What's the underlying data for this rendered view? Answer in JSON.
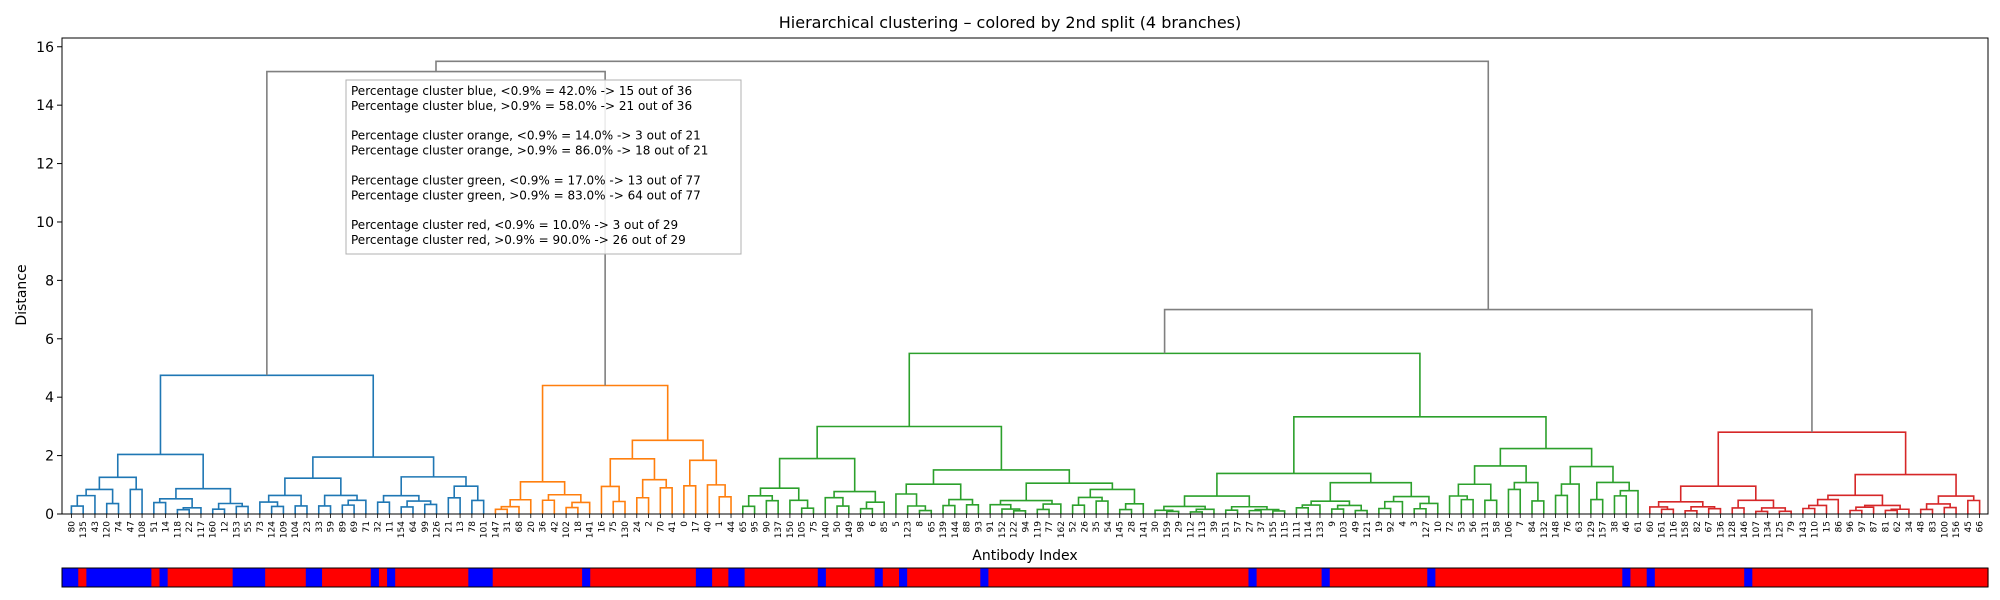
{
  "chart_data": {
    "type": "dendrogram",
    "title": "Hierarchical clustering – colored by 2nd split (4 branches)",
    "xlabel": "Antibody Index",
    "ylabel": "Distance",
    "ylim": [
      0,
      16.3
    ],
    "yticks": [
      0,
      2,
      4,
      6,
      8,
      10,
      12,
      14,
      16
    ],
    "grid": false,
    "colors": {
      "blue_branch": "#1f77b4",
      "orange_branch": "#ff7f0e",
      "green_branch": "#2ca02c",
      "red_branch": "#d62728",
      "upper_links": "#808080",
      "label_low": "#0000ff",
      "label_high": "#ff0000"
    },
    "annotation_lines": [
      "Percentage cluster blue, <0.9% = 42.0%  -> 15  out of 36",
      "Percentage cluster blue, >0.9% = 58.0%  -> 21  out of 36",
      "",
      "Percentage cluster orange, <0.9% = 14.0%  -> 3  out of 21",
      "Percentage cluster orange, >0.9% = 86.0%  -> 18  out of 21",
      "",
      "Percentage cluster green, <0.9% = 17.0%  -> 13  out of 77",
      "Percentage cluster green, >0.9% = 83.0%  -> 64  out of 77",
      "",
      "Percentage cluster red, <0.9% = 10.0%  -> 3  out of 29",
      "Percentage cluster red, >0.9% = 90.0%  -> 26  out of 29"
    ],
    "clusters": [
      {
        "name": "blue",
        "size": 36,
        "low": 15,
        "high": 21,
        "merge_height": 4.75
      },
      {
        "name": "orange",
        "size": 21,
        "low": 3,
        "high": 18,
        "merge_height": 4.4
      },
      {
        "name": "green",
        "size": 77,
        "low": 13,
        "high": 64,
        "merge_height": 5.5
      },
      {
        "name": "red",
        "size": 29,
        "low": 3,
        "high": 26,
        "merge_height": 2.8
      }
    ],
    "upper_merges": [
      {
        "clusters": [
          "blue",
          "orange"
        ],
        "height": 15.15
      },
      {
        "clusters": [
          "green",
          "red"
        ],
        "height": 7.0
      },
      {
        "clusters": [
          "blue+orange",
          "green+red"
        ],
        "height": 15.5
      }
    ],
    "leaf_labels": {
      "blue": [
        "80",
        "135",
        "43",
        "120",
        "74",
        "47",
        "108",
        "51",
        "14",
        "118",
        "22",
        "117",
        "160",
        "12",
        "153",
        "55",
        "73",
        "124",
        "109",
        "104",
        "23",
        "33",
        "59",
        "89",
        "69",
        "71",
        "32",
        "11",
        "154",
        "64",
        "99",
        "126",
        "21",
        "13",
        "78",
        "101"
      ],
      "orange": [
        "147",
        "31",
        "68",
        "20",
        "36",
        "42",
        "102",
        "18",
        "141",
        "16",
        "75",
        "130",
        "24",
        "2",
        "70",
        "41",
        "0",
        "17",
        "40",
        "1",
        "44"
      ],
      "green": [
        "65",
        "95",
        "90",
        "137",
        "150",
        "105",
        "75",
        "140",
        "50",
        "149",
        "98",
        "6",
        "85",
        "5",
        "123",
        "8",
        "65",
        "139",
        "144",
        "88",
        "93",
        "91",
        "152",
        "122",
        "94",
        "119",
        "77",
        "162",
        "52",
        "26",
        "35",
        "54",
        "145",
        "28",
        "141",
        "30",
        "159",
        "29",
        "112",
        "113",
        "39",
        "151",
        "57",
        "27",
        "37",
        "155",
        "115",
        "111",
        "114",
        "133",
        "9",
        "103",
        "49",
        "121",
        "19",
        "92",
        "4",
        "3",
        "127",
        "10",
        "72",
        "53",
        "56",
        "131",
        "58",
        "106",
        "7",
        "84",
        "132",
        "148",
        "76",
        "63",
        "129",
        "157",
        "38",
        "46",
        "61"
      ],
      "red": [
        "60",
        "161",
        "116",
        "158",
        "82",
        "67",
        "136",
        "128",
        "146",
        "107",
        "134",
        "125",
        "79",
        "143",
        "110",
        "15",
        "86",
        "96",
        "97",
        "87",
        "81",
        "62",
        "34",
        "48",
        "83",
        "100",
        "156",
        "45",
        "66"
      ]
    },
    "blue_labels": [
      "80",
      "135",
      "120",
      "74",
      "47",
      "108",
      "51",
      "118",
      "55",
      "73",
      "124",
      "109",
      "104",
      "59",
      "89",
      "64",
      "99",
      "126",
      "147",
      "31",
      "141",
      "1",
      "44",
      "65",
      "95",
      "90",
      "137",
      "150",
      "105",
      "85",
      "139",
      "93",
      "94",
      "119",
      "35",
      "133",
      "4",
      "3",
      "60",
      "116",
      "79"
    ],
    "color_bar": [
      "B",
      "B",
      "R",
      "B",
      "B",
      "B",
      "B",
      "B",
      "B",
      "B",
      "B",
      "R",
      "B",
      "R",
      "R",
      "R",
      "R",
      "R",
      "R",
      "R",
      "R",
      "B",
      "B",
      "B",
      "B",
      "R",
      "R",
      "R",
      "R",
      "R",
      "B",
      "B",
      "R",
      "R",
      "R",
      "R",
      "R",
      "R",
      "B",
      "R",
      "B",
      "R",
      "R",
      "R",
      "R",
      "R",
      "R",
      "R",
      "R",
      "R",
      "B",
      "B",
      "B",
      "R",
      "R",
      "R",
      "R",
      "R",
      "R",
      "R",
      "R",
      "R",
      "R",
      "R",
      "B",
      "R",
      "R",
      "R",
      "R",
      "R",
      "R",
      "R",
      "R",
      "R",
      "R",
      "R",
      "R",
      "R",
      "B",
      "B",
      "R",
      "R",
      "B",
      "B",
      "R",
      "R",
      "R",
      "R",
      "R",
      "R",
      "R",
      "R",
      "R",
      "B",
      "R",
      "R",
      "R",
      "R",
      "R",
      "R",
      "B",
      "R",
      "R",
      "B",
      "R",
      "R",
      "R",
      "R",
      "R",
      "R",
      "R",
      "R",
      "R",
      "B",
      "R",
      "R",
      "R",
      "R",
      "R",
      "R",
      "R",
      "R",
      "R",
      "R",
      "R",
      "R",
      "R",
      "R",
      "R",
      "R",
      "R",
      "R",
      "R",
      "R",
      "R",
      "R",
      "R",
      "R",
      "R",
      "R",
      "R",
      "R",
      "R",
      "R",
      "R",
      "R",
      "B",
      "R",
      "R",
      "R",
      "R",
      "R",
      "R",
      "R",
      "R",
      "B",
      "R",
      "R",
      "R",
      "R",
      "R",
      "R",
      "R",
      "R",
      "R",
      "R",
      "R",
      "R",
      "B",
      "R",
      "R",
      "R",
      "R",
      "R",
      "R",
      "R",
      "R",
      "R",
      "R",
      "R",
      "R",
      "R",
      "R",
      "R",
      "R",
      "R",
      "R",
      "R",
      "R",
      "R",
      "R",
      "R",
      "B",
      "R",
      "R",
      "B",
      "R",
      "R",
      "R",
      "R",
      "R",
      "R",
      "R",
      "R",
      "R",
      "R",
      "R",
      "B",
      "R",
      "R",
      "R",
      "R",
      "R",
      "R",
      "R",
      "R",
      "R",
      "R",
      "R",
      "R",
      "R",
      "R",
      "R",
      "R",
      "R",
      "R",
      "R",
      "R",
      "R",
      "R",
      "R",
      "R",
      "R",
      "R",
      "R",
      "R",
      "R"
    ]
  }
}
